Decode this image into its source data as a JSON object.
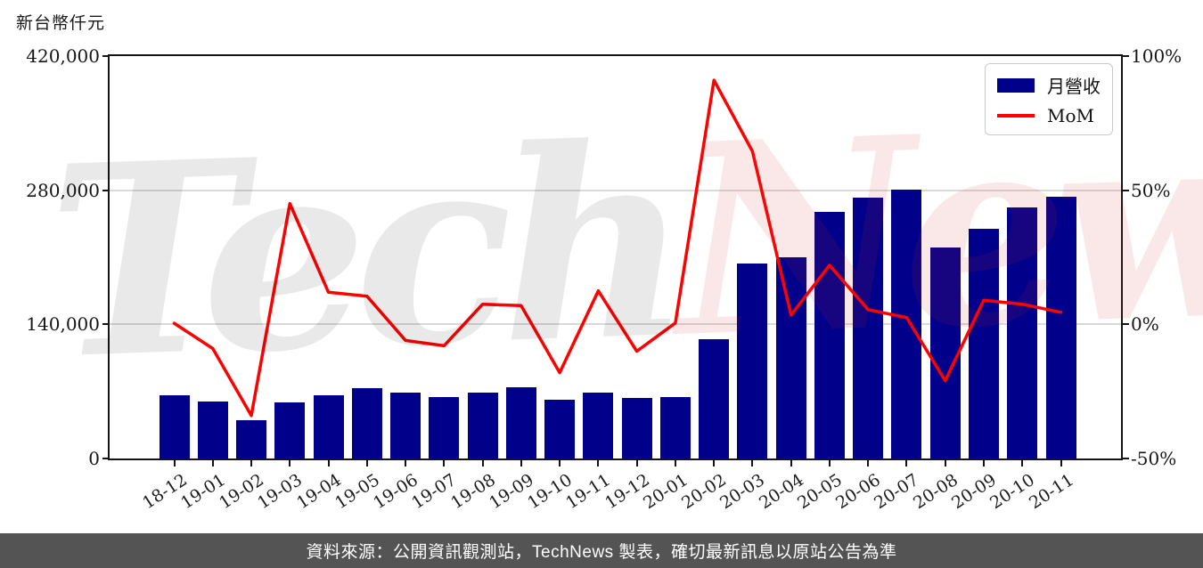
{
  "page": {
    "title": "新台幣仟元",
    "footer": "資料來源：公開資訊觀測站，TechNews 製表，確切最新訊息以原站公告為準",
    "watermark": {
      "part1": "Tech",
      "part2": "News"
    }
  },
  "legend": {
    "bar_label": "月營收",
    "line_label": "MoM"
  },
  "colors": {
    "bar": "#00008B",
    "line": "#FF0000",
    "grid": "#d9d9d9",
    "axis": "#141414",
    "footer_bg": "#545454"
  },
  "chart_data": {
    "type": "bar+line",
    "title": "新台幣仟元",
    "grid": "horizontal",
    "legend_position": "top-right",
    "categories": [
      "18-12",
      "19-01",
      "19-02",
      "19-03",
      "19-04",
      "19-05",
      "19-06",
      "19-07",
      "19-08",
      "19-09",
      "19-10",
      "19-11",
      "19-12",
      "20-01",
      "20-02",
      "20-03",
      "20-04",
      "20-05",
      "20-06",
      "20-07",
      "20-08",
      "20-09",
      "20-10",
      "20-11"
    ],
    "series": [
      {
        "name": "月營收",
        "type": "bar",
        "axis": "left",
        "unit": "新台幣仟元",
        "color": "#00008B",
        "values": [
          66400,
          59900,
          39700,
          58300,
          66400,
          73800,
          69200,
          63900,
          68500,
          74700,
          61400,
          68500,
          62900,
          63900,
          124200,
          203100,
          210000,
          257300,
          272700,
          280300,
          220200,
          240200,
          261900,
          273400
        ]
      },
      {
        "name": "MoM",
        "type": "line",
        "axis": "right",
        "unit": "%",
        "color": "#FF0000",
        "values": [
          0.4,
          -9,
          -34,
          45,
          12,
          10.5,
          -6,
          -8,
          7.5,
          7,
          -18,
          12.5,
          -10,
          0.5,
          91,
          64.5,
          3.5,
          22,
          5.5,
          2.5,
          -21,
          9,
          7.5,
          4.5
        ]
      }
    ],
    "left_axis": {
      "min": 0,
      "max": 420000,
      "tick_values": [
        0,
        140000,
        280000,
        420000
      ],
      "tick_labels": [
        "0",
        "140,000",
        "280,000",
        "420,000"
      ],
      "grid_values": [
        140000,
        280000
      ]
    },
    "right_axis": {
      "min": -50,
      "max": 100,
      "tick_values": [
        -50,
        0,
        50,
        100
      ],
      "tick_labels": [
        "-50%",
        "0%",
        "50%",
        "100%"
      ]
    }
  }
}
